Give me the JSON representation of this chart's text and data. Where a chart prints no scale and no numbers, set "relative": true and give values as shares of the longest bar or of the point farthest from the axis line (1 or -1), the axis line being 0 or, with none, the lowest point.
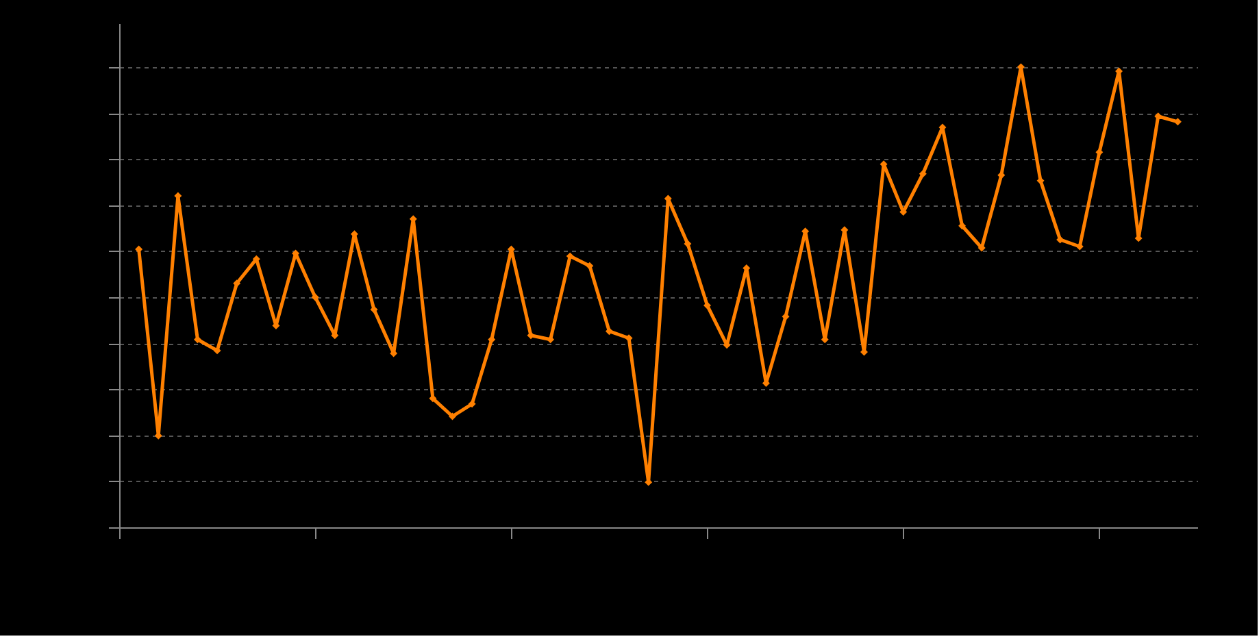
{
  "chart_data": {
    "type": "line",
    "relative": true,
    "categories": [
      null,
      null,
      null,
      null,
      null,
      null,
      null,
      null,
      null,
      null,
      null,
      null,
      null,
      null,
      null,
      null,
      null,
      null,
      null,
      null,
      null,
      null,
      null,
      null,
      null,
      null,
      null,
      null,
      null,
      null,
      null,
      null,
      null,
      null,
      null,
      null,
      null,
      null,
      null,
      null,
      null,
      null,
      null,
      null,
      null,
      null,
      null,
      null,
      null,
      null,
      null,
      null,
      null,
      null
    ],
    "series": [
      {
        "color": "#ff8000",
        "values": [
          0.604,
          0.199,
          0.72,
          0.408,
          0.384,
          0.53,
          0.583,
          0.438,
          0.595,
          0.5,
          0.417,
          0.637,
          0.473,
          0.378,
          0.67,
          0.28,
          0.241,
          0.268,
          0.408,
          0.604,
          0.417,
          0.408,
          0.589,
          0.568,
          0.426,
          0.411,
          0.098,
          0.714,
          0.616,
          0.482,
          0.396,
          0.563,
          0.313,
          0.458,
          0.643,
          0.408,
          0.646,
          0.381,
          0.789,
          0.685,
          0.768,
          0.869,
          0.655,
          0.607,
          0.765,
          1,
          0.753,
          0.625,
          0.61,
          0.815,
          0.991,
          0.628,
          0.893,
          0.881
        ]
      }
    ],
    "grid": "y",
    "marker": "diamond",
    "line_style": "solid",
    "tick_labels": false
  }
}
